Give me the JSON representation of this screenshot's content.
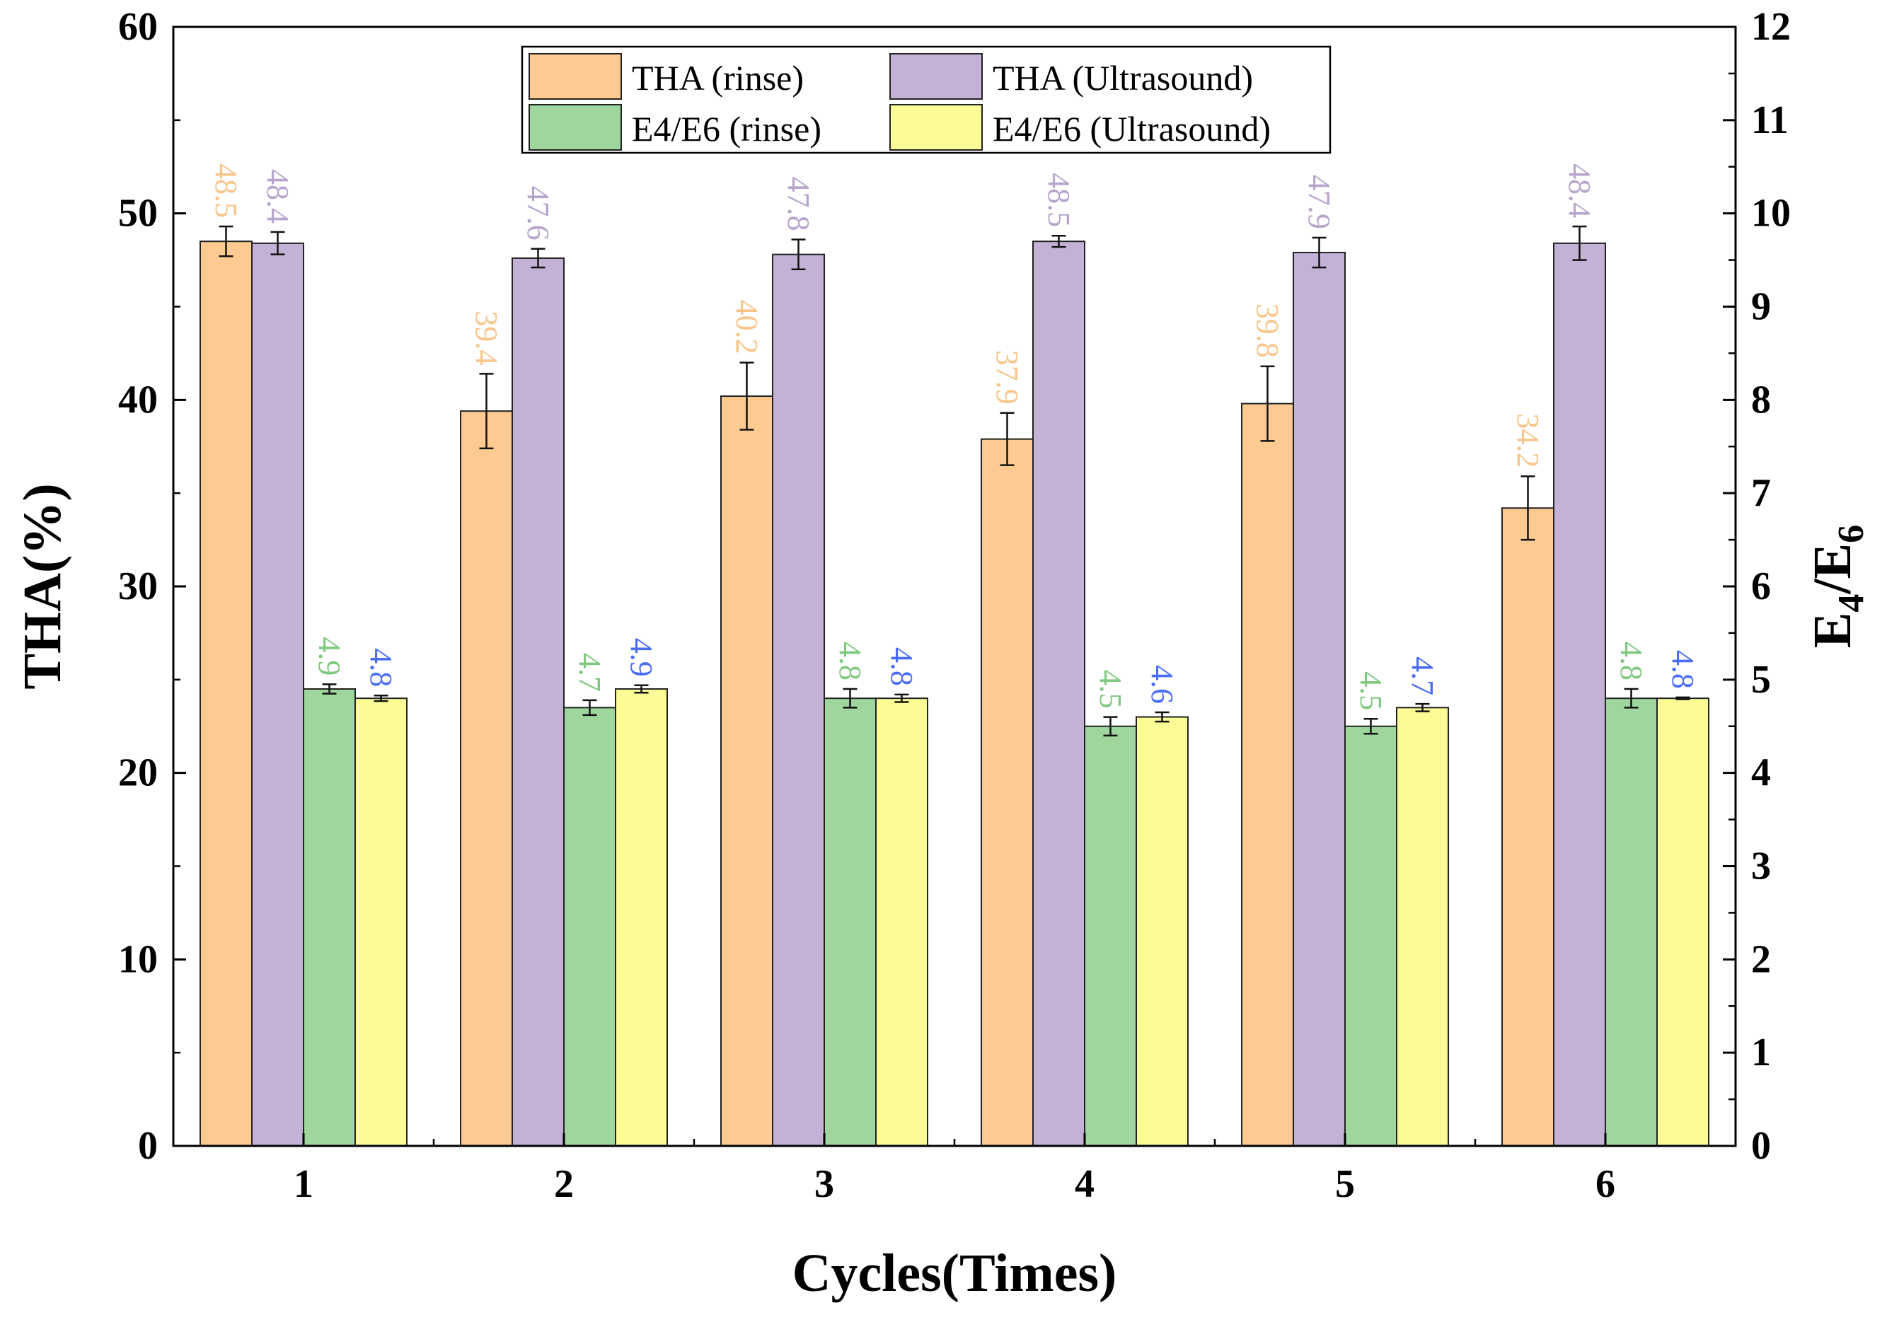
{
  "chart_data": {
    "type": "bar",
    "categories": [
      "1",
      "2",
      "3",
      "4",
      "5",
      "6"
    ],
    "xlabel": "Cycles(Times)",
    "ylabel_left": "THA(%)",
    "ylabel_right": {
      "base1": "E",
      "sub1": "4",
      "slash": "/",
      "base2": "E",
      "sub2": "6"
    },
    "ylim_left": [
      0,
      60
    ],
    "ylim_right": [
      0,
      12
    ],
    "yticks_left": [
      "0",
      "10",
      "20",
      "30",
      "40",
      "50",
      "60"
    ],
    "yticks_right": [
      "0",
      "1",
      "2",
      "3",
      "4",
      "5",
      "6",
      "7",
      "8",
      "9",
      "10",
      "11",
      "12"
    ],
    "series": [
      {
        "name": "THA (rinse)",
        "axis": "left",
        "fill": "#FDCA92",
        "label_color": "#F9C58B",
        "values": [
          48.5,
          39.4,
          40.2,
          37.9,
          39.8,
          34.2
        ],
        "labels": [
          "48.5",
          "39.4",
          "40.2",
          "37.9",
          "39.8",
          "34.2"
        ],
        "errors": [
          0.8,
          2.0,
          1.8,
          1.4,
          2.0,
          1.7
        ]
      },
      {
        "name": "THA (Ultrasound)",
        "axis": "left",
        "fill": "#C4B2D6",
        "label_color": "#B7A5CC",
        "values": [
          48.4,
          47.6,
          47.8,
          48.5,
          47.9,
          48.4
        ],
        "labels": [
          "48.4",
          "47.6",
          "47.8",
          "48.5",
          "47.9",
          "48.4"
        ],
        "errors": [
          0.6,
          0.5,
          0.8,
          0.3,
          0.8,
          0.9
        ]
      },
      {
        "name": "E4/E6 (rinse)",
        "axis": "right",
        "fill": "#9ED69E",
        "label_color": "#80C880",
        "values": [
          4.9,
          4.7,
          4.8,
          4.5,
          4.5,
          4.8
        ],
        "labels": [
          "4.9",
          "4.7",
          "4.8",
          "4.5",
          "4.5",
          "4.8"
        ],
        "errors": [
          0.05,
          0.08,
          0.1,
          0.1,
          0.08,
          0.1
        ]
      },
      {
        "name": "E4/E6 (Ultrasound)",
        "axis": "right",
        "fill": "#FCFC96",
        "label_color": "#4A6CF7",
        "values": [
          4.8,
          4.9,
          4.8,
          4.6,
          4.7,
          4.8
        ],
        "labels": [
          "4.8",
          "4.9",
          "4.8",
          "4.6",
          "4.7",
          "4.8"
        ],
        "errors": [
          0.03,
          0.04,
          0.04,
          0.05,
          0.04,
          0.01
        ]
      }
    ],
    "legend": {
      "placement": "top-center",
      "columns": 2
    }
  }
}
